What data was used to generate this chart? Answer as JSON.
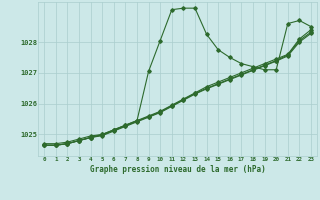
{
  "title": "Graphe pression niveau de la mer (hPa)",
  "bg_color": "#cce8e8",
  "grid_color": "#aacece",
  "line_color": "#2d6a2d",
  "x_ticks": [
    0,
    1,
    2,
    3,
    4,
    5,
    6,
    7,
    8,
    9,
    10,
    11,
    12,
    13,
    14,
    15,
    16,
    17,
    18,
    19,
    20,
    21,
    22,
    23
  ],
  "ylim": [
    1024.3,
    1029.3
  ],
  "yticks": [
    1025,
    1026,
    1027,
    1028
  ],
  "series1": [
    1024.7,
    1024.7,
    1024.75,
    1024.85,
    1024.95,
    1025.0,
    1025.15,
    1025.3,
    1025.45,
    1027.05,
    1028.05,
    1029.05,
    1029.1,
    1029.1,
    1028.25,
    1027.75,
    1027.5,
    1027.3,
    1027.2,
    1027.1,
    1027.1,
    1028.6,
    1028.7,
    1028.5
  ],
  "series2": [
    1024.65,
    1024.65,
    1024.7,
    1024.8,
    1024.9,
    1025.0,
    1025.15,
    1025.3,
    1025.45,
    1025.6,
    1025.75,
    1025.95,
    1026.15,
    1026.35,
    1026.55,
    1026.7,
    1026.85,
    1027.0,
    1027.15,
    1027.3,
    1027.45,
    1027.6,
    1028.1,
    1028.4
  ],
  "series3": [
    1024.65,
    1024.65,
    1024.7,
    1024.8,
    1024.9,
    1024.98,
    1025.13,
    1025.28,
    1025.43,
    1025.58,
    1025.73,
    1025.93,
    1026.13,
    1026.33,
    1026.5,
    1026.65,
    1026.8,
    1026.95,
    1027.1,
    1027.25,
    1027.4,
    1027.58,
    1028.05,
    1028.32
  ],
  "series4": [
    1024.65,
    1024.65,
    1024.7,
    1024.8,
    1024.9,
    1024.96,
    1025.11,
    1025.26,
    1025.41,
    1025.56,
    1025.71,
    1025.91,
    1026.11,
    1026.31,
    1026.48,
    1026.63,
    1026.78,
    1026.93,
    1027.08,
    1027.23,
    1027.38,
    1027.55,
    1028.0,
    1028.28
  ]
}
